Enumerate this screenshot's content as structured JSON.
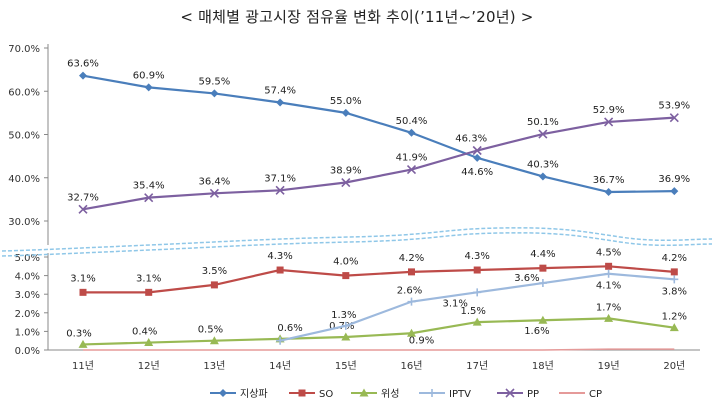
{
  "title": "< 매체별 광고시장 점유율 변화 추이(’11년~’20년) >",
  "chart_data": {
    "type": "line",
    "categories": [
      "11년",
      "12년",
      "13년",
      "14년",
      "15년",
      "16년",
      "17년",
      "18년",
      "19년",
      "20년"
    ],
    "top_axis": {
      "ylim": [
        30,
        70
      ],
      "ticks": [
        "30.0%",
        "40.0%",
        "50.0%",
        "60.0%",
        "70.0%"
      ],
      "tick_values": [
        30,
        40,
        50,
        60,
        70
      ]
    },
    "bottom_axis": {
      "ylim": [
        0,
        5
      ],
      "ticks": [
        "0.0%",
        "1.0%",
        "2.0%",
        "3.0%",
        "4.0%",
        "5.0%"
      ],
      "tick_values": [
        0,
        1,
        2,
        3,
        4,
        5
      ]
    },
    "series": [
      {
        "name": "지상파",
        "axis": "top",
        "color": "#4A7EBB",
        "marker": "diamond",
        "values": [
          63.6,
          60.9,
          59.5,
          57.4,
          55.0,
          50.4,
          44.6,
          40.3,
          36.7,
          36.9
        ],
        "labels": [
          "63.6%",
          "60.9%",
          "59.5%",
          "57.4%",
          "55.0%",
          "50.4%",
          "44.6%",
          "40.3%",
          "36.7%",
          "36.9%"
        ]
      },
      {
        "name": "SO",
        "axis": "bottom",
        "color": "#BE4B48",
        "marker": "square",
        "values": [
          3.1,
          3.1,
          3.5,
          4.3,
          4.0,
          4.2,
          4.3,
          4.4,
          4.5,
          4.2
        ],
        "labels": [
          "3.1%",
          "3.1%",
          "3.5%",
          "4.3%",
          "4.0%",
          "4.2%",
          "4.3%",
          "4.4%",
          "4.5%",
          "4.2%"
        ]
      },
      {
        "name": "위성",
        "axis": "bottom",
        "color": "#98B954",
        "marker": "triangle",
        "values": [
          0.3,
          0.4,
          0.5,
          0.6,
          0.7,
          0.9,
          1.5,
          1.6,
          1.7,
          1.2
        ],
        "labels": [
          "0.3%",
          "0.4%",
          "0.5%",
          "0.6%",
          "0.7%",
          "0.9%",
          "1.5%",
          "1.6%",
          "1.7%",
          "1.2%"
        ]
      },
      {
        "name": "IPTV",
        "axis": "bottom",
        "color": "#9DB9DD",
        "marker": "plus",
        "values": [
          null,
          null,
          null,
          0.5,
          1.3,
          2.6,
          3.1,
          3.6,
          4.1,
          3.8
        ],
        "labels": [
          null,
          null,
          null,
          null,
          "1.3%",
          "2.6%",
          "3.1%",
          "3.6%",
          "4.1%",
          "3.8%"
        ]
      },
      {
        "name": "PP",
        "axis": "top",
        "color": "#7D60A0",
        "marker": "x",
        "values": [
          32.7,
          35.4,
          36.4,
          37.1,
          38.9,
          41.9,
          46.3,
          50.1,
          52.9,
          53.9
        ],
        "labels": [
          "32.7%",
          "35.4%",
          "36.4%",
          "37.1%",
          "38.9%",
          "41.9%",
          "46.3%",
          "50.1%",
          "52.9%",
          "53.9%"
        ]
      },
      {
        "name": "CP",
        "axis": "bottom",
        "color": "#E59A99",
        "marker": "none",
        "values": [
          0.0,
          0.0,
          0.0,
          0.0,
          0.0,
          0.0,
          0.0,
          0.0,
          0.05,
          0.05
        ],
        "labels": [
          null,
          null,
          null,
          null,
          null,
          null,
          null,
          null,
          null,
          null
        ]
      }
    ],
    "legend_placement": "bottom",
    "axis_break": "wavy dashed line between 30.0% and 5.0%"
  }
}
